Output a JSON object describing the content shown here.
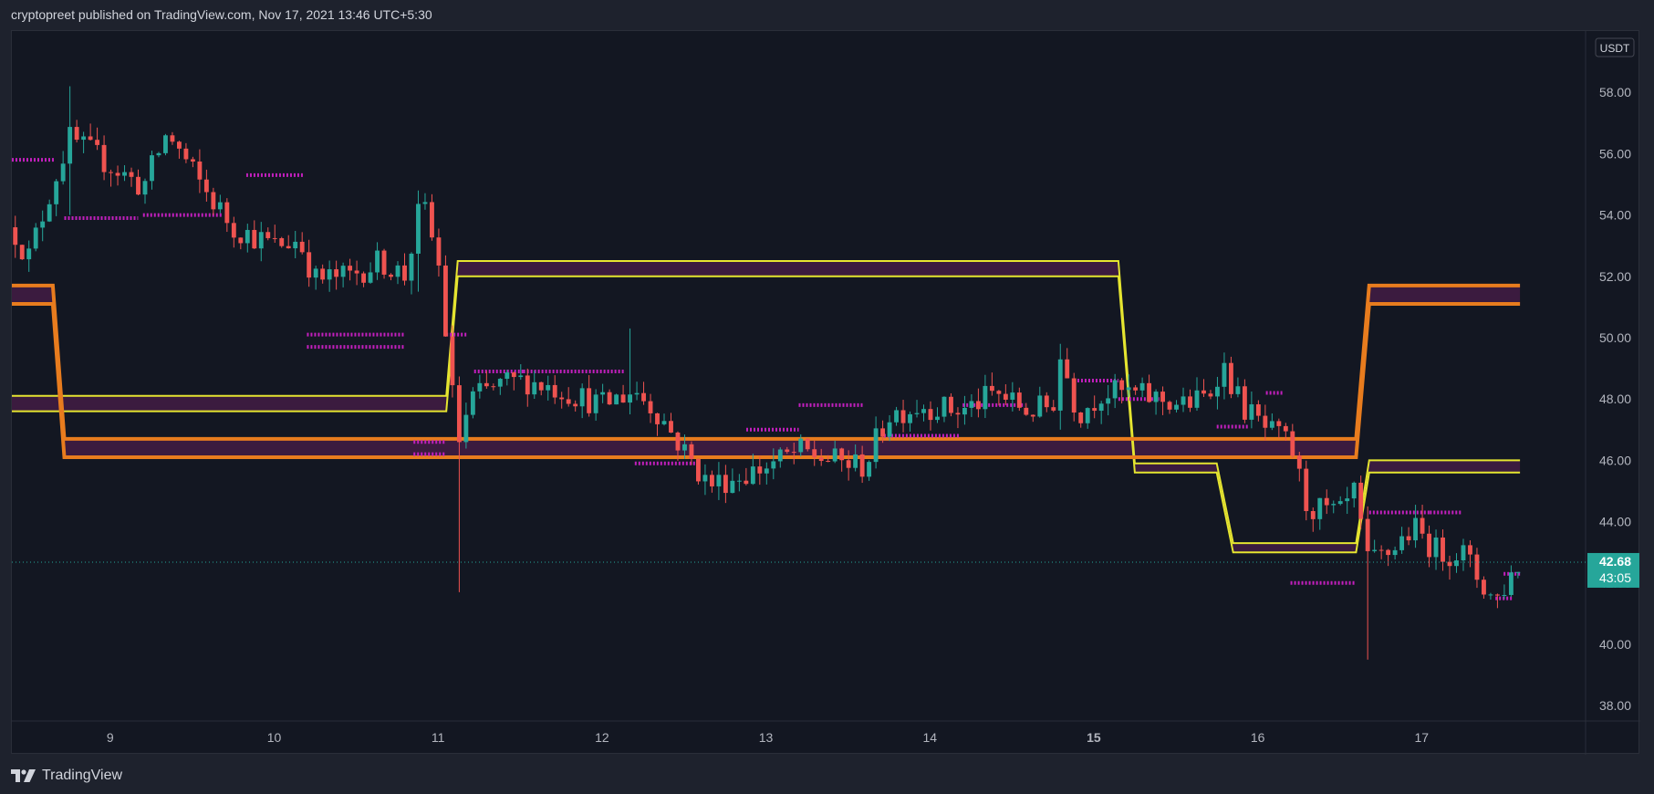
{
  "header": {
    "publish_text": "cryptopreet published on TradingView.com, Nov 17, 2021 13:46 UTC+5:30"
  },
  "footer": {
    "brand": "TradingView",
    "logo_icon": "tradingview-logo-icon"
  },
  "price_scale": {
    "currency": "USDT",
    "current_price": "42.68",
    "countdown": "43:05",
    "current_price_value": 42.68
  },
  "colors": {
    "background": "#131722",
    "up_candle": "#26a69a",
    "down_candle": "#ef5350",
    "band_yellow": "#e5e530",
    "band_orange": "#e87c1e",
    "band_fill": "#4a1d4a",
    "pivot_dots": "#c21fbd",
    "price_line": "#26a69a"
  },
  "chart_data": {
    "type": "candlestick",
    "title": "",
    "currency": "USDT",
    "ylim": [
      37.5,
      60.0
    ],
    "x_range": [
      8.4,
      18.0
    ],
    "yticks": [
      38,
      40,
      42,
      44,
      46,
      48,
      50,
      52,
      54,
      56,
      58
    ],
    "ytick_labels": [
      "38.00",
      "40.00",
      "42.00",
      "44.00",
      "46.00",
      "48.00",
      "50.00",
      "52.00",
      "54.00",
      "56.00",
      "58.00"
    ],
    "xticks": [
      9,
      10,
      11,
      12,
      13,
      14,
      15,
      16,
      17
    ],
    "xtick_labels": [
      "9",
      "10",
      "11",
      "12",
      "13",
      "14",
      "15",
      "16",
      "17"
    ],
    "xtick_bold": [
      "15"
    ],
    "grid": false,
    "anchors": [
      [
        8.4,
        53.6
      ],
      [
        8.5,
        52.6
      ],
      [
        8.65,
        55.0
      ],
      [
        8.75,
        56.5
      ],
      [
        8.95,
        55.8
      ],
      [
        9.2,
        54.9
      ],
      [
        9.35,
        56.7
      ],
      [
        9.55,
        55.0
      ],
      [
        9.75,
        53.6
      ],
      [
        10.0,
        53.0
      ],
      [
        10.15,
        53.2
      ],
      [
        10.25,
        51.9
      ],
      [
        10.45,
        52.0
      ],
      [
        10.65,
        52.5
      ],
      [
        10.8,
        52.0
      ],
      [
        10.9,
        54.5
      ],
      [
        11.0,
        52.5
      ],
      [
        11.05,
        50.0
      ],
      [
        11.12,
        46.5
      ],
      [
        11.2,
        48.0
      ],
      [
        11.4,
        48.5
      ],
      [
        11.55,
        48.6
      ],
      [
        11.75,
        48.3
      ],
      [
        12.0,
        47.8
      ],
      [
        12.2,
        48.3
      ],
      [
        12.35,
        47.5
      ],
      [
        12.5,
        46.3
      ],
      [
        12.65,
        45.2
      ],
      [
        12.85,
        45.5
      ],
      [
        13.0,
        45.8
      ],
      [
        13.2,
        46.3
      ],
      [
        13.4,
        46.0
      ],
      [
        13.6,
        45.8
      ],
      [
        13.75,
        47.5
      ],
      [
        13.95,
        47.8
      ],
      [
        14.2,
        47.6
      ],
      [
        14.4,
        48.2
      ],
      [
        14.6,
        47.6
      ],
      [
        14.75,
        47.8
      ],
      [
        14.8,
        49.5
      ],
      [
        14.9,
        47.5
      ],
      [
        15.05,
        48.2
      ],
      [
        15.2,
        48.2
      ],
      [
        15.4,
        48.0
      ],
      [
        15.55,
        47.8
      ],
      [
        15.7,
        48.1
      ],
      [
        15.78,
        49.2
      ],
      [
        15.9,
        47.8
      ],
      [
        16.05,
        47.0
      ],
      [
        16.2,
        46.5
      ],
      [
        16.3,
        44.5
      ],
      [
        16.5,
        44.2
      ],
      [
        16.6,
        45.0
      ],
      [
        16.66,
        42.6
      ],
      [
        16.8,
        43.0
      ],
      [
        16.95,
        43.8
      ],
      [
        17.1,
        43.0
      ],
      [
        17.25,
        43.0
      ],
      [
        17.35,
        42.1
      ],
      [
        17.45,
        41.4
      ],
      [
        17.55,
        42.3
      ],
      [
        17.6,
        42.7
      ]
    ],
    "wicks": [
      {
        "x": 11.12,
        "low": 41.7,
        "high": 47.0
      },
      {
        "x": 16.66,
        "low": 39.5,
        "high": 43.8
      },
      {
        "x": 8.75,
        "low": 54.0,
        "high": 58.2
      },
      {
        "x": 12.18,
        "low": 47.5,
        "high": 50.3
      },
      {
        "x": 10.87,
        "low": 51.5,
        "high": 54.8
      },
      {
        "x": 14.8,
        "low": 47.0,
        "high": 49.8
      }
    ],
    "bands": [
      {
        "name": "",
        "color": "#e5e530",
        "width": 2,
        "points": [
          [
            8.4,
            48.1
          ],
          [
            11.05,
            48.1
          ],
          [
            11.12,
            52.5
          ],
          [
            15.15,
            52.5
          ],
          [
            15.25,
            45.9
          ],
          [
            15.75,
            45.9
          ],
          [
            15.85,
            43.3
          ],
          [
            16.6,
            43.3
          ],
          [
            16.68,
            46.0
          ],
          [
            17.6,
            46.0
          ]
        ]
      },
      {
        "name": "",
        "color": "#e5e530",
        "width": 2,
        "points": [
          [
            8.4,
            47.6
          ],
          [
            11.05,
            47.6
          ],
          [
            11.12,
            52.0
          ],
          [
            15.15,
            52.0
          ],
          [
            15.25,
            45.6
          ],
          [
            15.75,
            45.6
          ],
          [
            15.85,
            43.0
          ],
          [
            16.6,
            43.0
          ],
          [
            16.68,
            45.6
          ],
          [
            17.6,
            45.6
          ]
        ]
      },
      {
        "name": "",
        "color": "#e87c1e",
        "width": 4,
        "points": [
          [
            8.4,
            51.7
          ],
          [
            8.65,
            51.7
          ],
          [
            8.72,
            46.7
          ],
          [
            16.6,
            46.7
          ],
          [
            16.68,
            51.7
          ],
          [
            17.6,
            51.7
          ]
        ]
      },
      {
        "name": "",
        "color": "#e87c1e",
        "width": 4,
        "points": [
          [
            8.4,
            51.1
          ],
          [
            8.65,
            51.1
          ],
          [
            8.72,
            46.1
          ],
          [
            16.6,
            46.1
          ],
          [
            16.68,
            51.1
          ],
          [
            17.6,
            51.1
          ]
        ]
      }
    ],
    "pivot_levels": [
      {
        "x0": 8.4,
        "x1": 8.66,
        "y": 55.8
      },
      {
        "x0": 8.72,
        "x1": 9.17,
        "y": 53.9
      },
      {
        "x0": 9.2,
        "x1": 9.68,
        "y": 54.0
      },
      {
        "x0": 9.83,
        "x1": 10.18,
        "y": 55.3
      },
      {
        "x0": 10.2,
        "x1": 10.8,
        "y": 50.1
      },
      {
        "x0": 10.2,
        "x1": 10.8,
        "y": 49.7
      },
      {
        "x0": 10.85,
        "x1": 11.05,
        "y": 46.6
      },
      {
        "x0": 10.85,
        "x1": 11.05,
        "y": 46.2
      },
      {
        "x0": 11.05,
        "x1": 11.18,
        "y": 50.1
      },
      {
        "x0": 11.22,
        "x1": 11.52,
        "y": 48.9
      },
      {
        "x0": 11.52,
        "x1": 12.14,
        "y": 48.9
      },
      {
        "x0": 12.2,
        "x1": 12.58,
        "y": 45.9
      },
      {
        "x0": 12.88,
        "x1": 13.2,
        "y": 47.0
      },
      {
        "x0": 13.2,
        "x1": 13.6,
        "y": 47.8
      },
      {
        "x0": 13.72,
        "x1": 14.18,
        "y": 46.8
      },
      {
        "x0": 14.2,
        "x1": 14.58,
        "y": 47.8
      },
      {
        "x0": 14.9,
        "x1": 15.15,
        "y": 48.6
      },
      {
        "x0": 15.15,
        "x1": 15.4,
        "y": 48.0
      },
      {
        "x0": 15.75,
        "x1": 15.95,
        "y": 47.1
      },
      {
        "x0": 16.05,
        "x1": 16.15,
        "y": 48.2
      },
      {
        "x0": 16.2,
        "x1": 16.6,
        "y": 42.0
      },
      {
        "x0": 16.68,
        "x1": 17.05,
        "y": 44.3
      },
      {
        "x0": 17.05,
        "x1": 17.25,
        "y": 44.3
      },
      {
        "x0": 17.45,
        "x1": 17.55,
        "y": 41.5
      },
      {
        "x0": 17.5,
        "x1": 17.6,
        "y": 42.3
      }
    ]
  }
}
